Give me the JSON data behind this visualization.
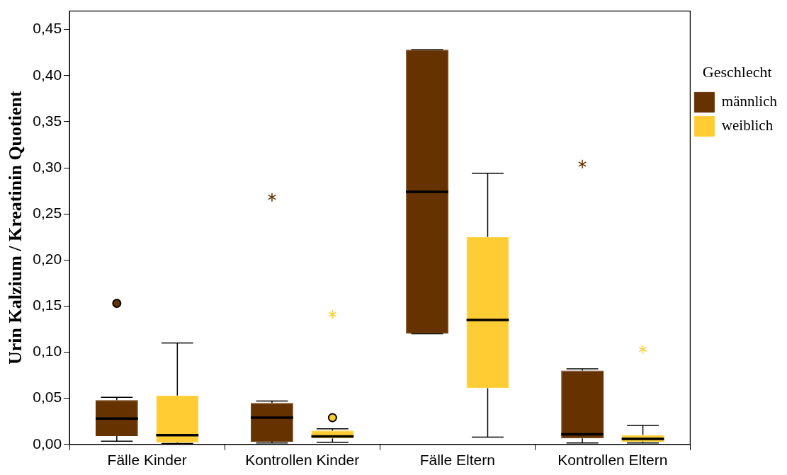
{
  "chart_data": {
    "type": "box",
    "ylabel": "Urin Kalzium / Kreatinin Quotient",
    "legend_title": "Geschlecht",
    "legend": "right",
    "grid": false,
    "categories": [
      "Fälle Kinder",
      "Kontrollen Kinder",
      "Fälle Eltern",
      "Kontrollen Eltern"
    ],
    "ylim": [
      0,
      0.47
    ],
    "yticks": [
      {
        "value": 0,
        "label": "0,00"
      },
      {
        "value": 0.05,
        "label": "0,05"
      },
      {
        "value": 0.1,
        "label": "0,10"
      },
      {
        "value": 0.15,
        "label": "0,15"
      },
      {
        "value": 0.2,
        "label": "0,20"
      },
      {
        "value": 0.25,
        "label": "0,25"
      },
      {
        "value": 0.3,
        "label": "0,30"
      },
      {
        "value": 0.35,
        "label": "0,35"
      },
      {
        "value": 0.4,
        "label": "0,40"
      },
      {
        "value": 0.45,
        "label": "0,45"
      }
    ],
    "series": [
      {
        "name": "männlich",
        "color": "#663300",
        "boxes": [
          {
            "low": 0.0035,
            "q1": 0.009,
            "median": 0.028,
            "q3": 0.048,
            "high": 0.051,
            "outliers": [
              0.153
            ]
          },
          {
            "low": 0.0015,
            "q1": 0.003,
            "median": 0.029,
            "q3": 0.045,
            "high": 0.047,
            "outliers": [
              0.268
            ]
          },
          {
            "low": 0.12,
            "q1": 0.12,
            "median": 0.274,
            "q3": 0.428,
            "high": 0.428
          },
          {
            "low": 0.0016,
            "q1": 0.0065,
            "median": 0.011,
            "q3": 0.08,
            "high": 0.082,
            "outliers": [
              0.304
            ]
          }
        ]
      },
      {
        "name": "weiblich",
        "color": "#ffcc33",
        "boxes": [
          {
            "low": 0.001,
            "q1": 0.002,
            "median": 0.01,
            "q3": 0.053,
            "high": 0.11
          },
          {
            "low": 0.0024,
            "q1": 0.0065,
            "median": 0.0087,
            "q3": 0.015,
            "high": 0.017,
            "outliers": [
              0.029,
              0.141
            ]
          },
          {
            "low": 0.008,
            "q1": 0.061,
            "median": 0.135,
            "q3": 0.225,
            "high": 0.294
          },
          {
            "low": 0.0015,
            "q1": 0.003,
            "median": 0.006,
            "q3": 0.0103,
            "high": 0.0206,
            "outliers": [
              0.103
            ]
          }
        ]
      }
    ]
  }
}
